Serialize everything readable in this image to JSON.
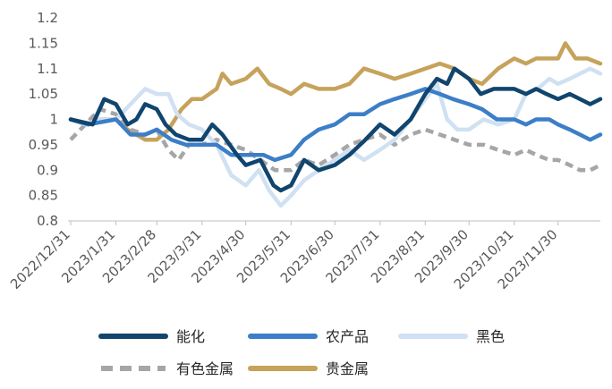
{
  "chart_data": {
    "type": "line",
    "title": "",
    "xlabel": "",
    "ylabel": "",
    "ylim": [
      0.8,
      1.2
    ],
    "y_ticks": [
      "0.8",
      "0.85",
      "0.9",
      "0.95",
      "1",
      "1.05",
      "1.1",
      "1.15",
      "1.2"
    ],
    "x_tick_labels": [
      "2022/12/31",
      "2023/1/31",
      "2023/2/28",
      "2023/3/31",
      "2023/4/30",
      "2023/5/31",
      "2023/6/30",
      "2023/7/31",
      "2023/8/31",
      "2023/9/30",
      "2023/10/31",
      "2023/11/30"
    ],
    "x_range": [
      "2022-12-31",
      "2023-12-29"
    ],
    "grid": false,
    "legend_position": "bottom",
    "series": [
      {
        "name": "能化",
        "color": "#10456d",
        "style": "solid",
        "points": [
          [
            "2022-12-31",
            1.0
          ],
          [
            "2023-01-15",
            0.99
          ],
          [
            "2023-01-23",
            1.04
          ],
          [
            "2023-01-31",
            1.03
          ],
          [
            "2023-02-08",
            0.99
          ],
          [
            "2023-02-14",
            1.0
          ],
          [
            "2023-02-20",
            1.03
          ],
          [
            "2023-02-28",
            1.02
          ],
          [
            "2023-03-06",
            0.99
          ],
          [
            "2023-03-13",
            0.97
          ],
          [
            "2023-03-22",
            0.96
          ],
          [
            "2023-03-31",
            0.96
          ],
          [
            "2023-04-07",
            0.99
          ],
          [
            "2023-04-14",
            0.97
          ],
          [
            "2023-04-24",
            0.93
          ],
          [
            "2023-04-30",
            0.91
          ],
          [
            "2023-05-10",
            0.92
          ],
          [
            "2023-05-19",
            0.87
          ],
          [
            "2023-05-24",
            0.86
          ],
          [
            "2023-05-31",
            0.87
          ],
          [
            "2023-06-09",
            0.92
          ],
          [
            "2023-06-19",
            0.9
          ],
          [
            "2023-06-30",
            0.91
          ],
          [
            "2023-07-10",
            0.93
          ],
          [
            "2023-07-21",
            0.96
          ],
          [
            "2023-07-31",
            0.99
          ],
          [
            "2023-08-10",
            0.97
          ],
          [
            "2023-08-21",
            1.0
          ],
          [
            "2023-08-31",
            1.05
          ],
          [
            "2023-09-08",
            1.08
          ],
          [
            "2023-09-15",
            1.07
          ],
          [
            "2023-09-20",
            1.1
          ],
          [
            "2023-09-30",
            1.08
          ],
          [
            "2023-10-08",
            1.05
          ],
          [
            "2023-10-17",
            1.06
          ],
          [
            "2023-10-31",
            1.06
          ],
          [
            "2023-11-08",
            1.05
          ],
          [
            "2023-11-15",
            1.06
          ],
          [
            "2023-11-22",
            1.05
          ],
          [
            "2023-11-30",
            1.04
          ],
          [
            "2023-12-08",
            1.05
          ],
          [
            "2023-12-15",
            1.04
          ],
          [
            "2023-12-22",
            1.03
          ],
          [
            "2023-12-29",
            1.04
          ]
        ]
      },
      {
        "name": "农产品",
        "color": "#3c7ec7",
        "style": "solid",
        "points": [
          [
            "2022-12-31",
            1.0
          ],
          [
            "2023-01-12",
            0.99
          ],
          [
            "2023-01-31",
            1.0
          ],
          [
            "2023-02-10",
            0.97
          ],
          [
            "2023-02-20",
            0.97
          ],
          [
            "2023-02-28",
            0.98
          ],
          [
            "2023-03-10",
            0.96
          ],
          [
            "2023-03-20",
            0.95
          ],
          [
            "2023-03-31",
            0.95
          ],
          [
            "2023-04-10",
            0.95
          ],
          [
            "2023-04-20",
            0.93
          ],
          [
            "2023-04-30",
            0.93
          ],
          [
            "2023-05-12",
            0.93
          ],
          [
            "2023-05-20",
            0.92
          ],
          [
            "2023-05-31",
            0.93
          ],
          [
            "2023-06-09",
            0.96
          ],
          [
            "2023-06-19",
            0.98
          ],
          [
            "2023-06-30",
            0.99
          ],
          [
            "2023-07-10",
            1.01
          ],
          [
            "2023-07-20",
            1.01
          ],
          [
            "2023-07-31",
            1.03
          ],
          [
            "2023-08-10",
            1.04
          ],
          [
            "2023-08-21",
            1.05
          ],
          [
            "2023-08-31",
            1.06
          ],
          [
            "2023-09-10",
            1.05
          ],
          [
            "2023-09-19",
            1.04
          ],
          [
            "2023-09-30",
            1.03
          ],
          [
            "2023-10-09",
            1.02
          ],
          [
            "2023-10-19",
            1.0
          ],
          [
            "2023-10-31",
            1.0
          ],
          [
            "2023-11-08",
            0.99
          ],
          [
            "2023-11-15",
            1.0
          ],
          [
            "2023-11-24",
            1.0
          ],
          [
            "2023-11-30",
            0.99
          ],
          [
            "2023-12-08",
            0.98
          ],
          [
            "2023-12-15",
            0.97
          ],
          [
            "2023-12-22",
            0.96
          ],
          [
            "2023-12-29",
            0.97
          ]
        ]
      },
      {
        "name": "黑色",
        "color": "#cfe1f2",
        "style": "solid",
        "points": [
          [
            "2022-12-31",
            1.0
          ],
          [
            "2023-01-10",
            0.99
          ],
          [
            "2023-01-20",
            1.0
          ],
          [
            "2023-01-31",
            1.0
          ],
          [
            "2023-02-10",
            1.03
          ],
          [
            "2023-02-20",
            1.06
          ],
          [
            "2023-02-28",
            1.05
          ],
          [
            "2023-03-08",
            1.05
          ],
          [
            "2023-03-14",
            1.01
          ],
          [
            "2023-03-22",
            0.99
          ],
          [
            "2023-03-31",
            0.98
          ],
          [
            "2023-04-10",
            0.95
          ],
          [
            "2023-04-20",
            0.89
          ],
          [
            "2023-04-30",
            0.87
          ],
          [
            "2023-05-09",
            0.9
          ],
          [
            "2023-05-16",
            0.86
          ],
          [
            "2023-05-24",
            0.83
          ],
          [
            "2023-05-31",
            0.85
          ],
          [
            "2023-06-09",
            0.88
          ],
          [
            "2023-06-19",
            0.9
          ],
          [
            "2023-06-30",
            0.92
          ],
          [
            "2023-07-10",
            0.94
          ],
          [
            "2023-07-20",
            0.92
          ],
          [
            "2023-07-31",
            0.94
          ],
          [
            "2023-08-10",
            0.96
          ],
          [
            "2023-08-21",
            1.0
          ],
          [
            "2023-08-31",
            1.04
          ],
          [
            "2023-09-08",
            1.07
          ],
          [
            "2023-09-15",
            1.0
          ],
          [
            "2023-09-22",
            0.98
          ],
          [
            "2023-09-30",
            0.98
          ],
          [
            "2023-10-10",
            1.0
          ],
          [
            "2023-10-20",
            0.99
          ],
          [
            "2023-10-31",
            1.0
          ],
          [
            "2023-11-08",
            1.05
          ],
          [
            "2023-11-16",
            1.06
          ],
          [
            "2023-11-24",
            1.08
          ],
          [
            "2023-11-30",
            1.07
          ],
          [
            "2023-12-08",
            1.08
          ],
          [
            "2023-12-15",
            1.09
          ],
          [
            "2023-12-22",
            1.1
          ],
          [
            "2023-12-29",
            1.09
          ]
        ]
      },
      {
        "name": "有色金属",
        "color": "#a6a6a6",
        "style": "dashed",
        "points": [
          [
            "2022-12-31",
            0.96
          ],
          [
            "2023-01-10",
            0.99
          ],
          [
            "2023-01-20",
            1.02
          ],
          [
            "2023-01-31",
            1.01
          ],
          [
            "2023-02-10",
            0.98
          ],
          [
            "2023-02-20",
            0.97
          ],
          [
            "2023-02-28",
            0.98
          ],
          [
            "2023-03-08",
            0.94
          ],
          [
            "2023-03-15",
            0.92
          ],
          [
            "2023-03-22",
            0.95
          ],
          [
            "2023-03-31",
            0.95
          ],
          [
            "2023-04-10",
            0.96
          ],
          [
            "2023-04-20",
            0.95
          ],
          [
            "2023-04-30",
            0.94
          ],
          [
            "2023-05-10",
            0.92
          ],
          [
            "2023-05-20",
            0.9
          ],
          [
            "2023-05-31",
            0.9
          ],
          [
            "2023-06-09",
            0.92
          ],
          [
            "2023-06-19",
            0.91
          ],
          [
            "2023-06-30",
            0.93
          ],
          [
            "2023-07-10",
            0.95
          ],
          [
            "2023-07-20",
            0.96
          ],
          [
            "2023-07-31",
            0.97
          ],
          [
            "2023-08-10",
            0.95
          ],
          [
            "2023-08-21",
            0.97
          ],
          [
            "2023-08-31",
            0.98
          ],
          [
            "2023-09-10",
            0.97
          ],
          [
            "2023-09-20",
            0.96
          ],
          [
            "2023-09-30",
            0.95
          ],
          [
            "2023-10-10",
            0.95
          ],
          [
            "2023-10-20",
            0.94
          ],
          [
            "2023-10-31",
            0.93
          ],
          [
            "2023-11-08",
            0.94
          ],
          [
            "2023-11-15",
            0.93
          ],
          [
            "2023-11-24",
            0.92
          ],
          [
            "2023-11-30",
            0.92
          ],
          [
            "2023-12-08",
            0.91
          ],
          [
            "2023-12-15",
            0.9
          ],
          [
            "2023-12-22",
            0.9
          ],
          [
            "2023-12-29",
            0.91
          ]
        ]
      },
      {
        "name": "贵金属",
        "color": "#c6a25b",
        "style": "solid",
        "points": [
          [
            "2022-12-31",
            1.0
          ],
          [
            "2023-01-10",
            0.99
          ],
          [
            "2023-01-20",
            1.0
          ],
          [
            "2023-01-31",
            1.0
          ],
          [
            "2023-02-08",
            0.98
          ],
          [
            "2023-02-14",
            0.97
          ],
          [
            "2023-02-20",
            0.96
          ],
          [
            "2023-02-28",
            0.96
          ],
          [
            "2023-03-08",
            0.98
          ],
          [
            "2023-03-17",
            1.02
          ],
          [
            "2023-03-24",
            1.04
          ],
          [
            "2023-03-31",
            1.04
          ],
          [
            "2023-04-10",
            1.06
          ],
          [
            "2023-04-14",
            1.09
          ],
          [
            "2023-04-20",
            1.07
          ],
          [
            "2023-04-30",
            1.08
          ],
          [
            "2023-05-08",
            1.1
          ],
          [
            "2023-05-16",
            1.07
          ],
          [
            "2023-05-24",
            1.06
          ],
          [
            "2023-05-31",
            1.05
          ],
          [
            "2023-06-09",
            1.07
          ],
          [
            "2023-06-19",
            1.06
          ],
          [
            "2023-06-30",
            1.06
          ],
          [
            "2023-07-10",
            1.07
          ],
          [
            "2023-07-20",
            1.1
          ],
          [
            "2023-07-31",
            1.09
          ],
          [
            "2023-08-10",
            1.08
          ],
          [
            "2023-08-21",
            1.09
          ],
          [
            "2023-08-31",
            1.1
          ],
          [
            "2023-09-10",
            1.11
          ],
          [
            "2023-09-20",
            1.1
          ],
          [
            "2023-09-30",
            1.08
          ],
          [
            "2023-10-09",
            1.07
          ],
          [
            "2023-10-20",
            1.1
          ],
          [
            "2023-10-31",
            1.12
          ],
          [
            "2023-11-08",
            1.11
          ],
          [
            "2023-11-15",
            1.12
          ],
          [
            "2023-11-24",
            1.12
          ],
          [
            "2023-11-30",
            1.12
          ],
          [
            "2023-12-05",
            1.15
          ],
          [
            "2023-12-12",
            1.12
          ],
          [
            "2023-12-20",
            1.12
          ],
          [
            "2023-12-29",
            1.11
          ]
        ]
      }
    ]
  }
}
